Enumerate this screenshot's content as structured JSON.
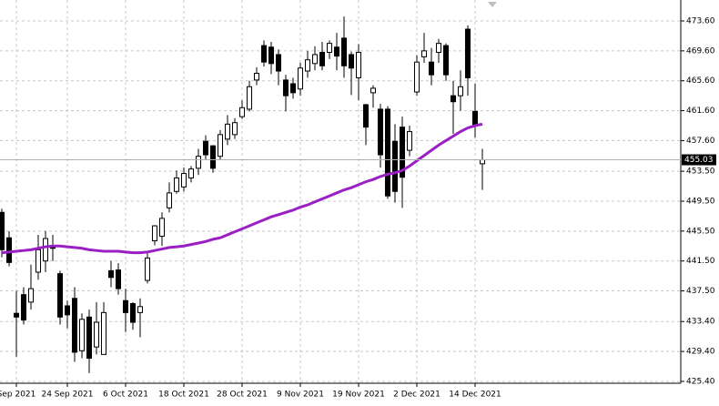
{
  "chart_data": {
    "type": "candlestick",
    "categories": [
      null,
      null,
      "Sep 2021",
      null,
      null,
      null,
      null,
      null,
      null,
      "24 Sep 2021",
      null,
      null,
      null,
      null,
      null,
      null,
      null,
      "6 Oct 2021",
      null,
      null,
      null,
      null,
      null,
      null,
      null,
      "18 Oct 2021",
      null,
      null,
      null,
      null,
      null,
      null,
      null,
      "28 Oct 2021",
      null,
      null,
      null,
      null,
      null,
      null,
      null,
      "9 Nov 2021",
      null,
      null,
      null,
      null,
      null,
      null,
      null,
      "19 Nov 2021",
      null,
      null,
      null,
      null,
      null,
      null,
      null,
      "2 Dec 2021",
      null,
      null,
      null,
      null,
      null,
      null,
      null,
      "14 Dec 2021",
      null
    ],
    "open": [
      448,
      444.6,
      434.5,
      437,
      436,
      440,
      441.5,
      443.5,
      439.8,
      435.5,
      436.5,
      429.5,
      434,
      430,
      429,
      440.2,
      440.3,
      436.2,
      435.8,
      434.6,
      438.9,
      444.2,
      444.8,
      448.6,
      450.8,
      451.4,
      452.6,
      453.9,
      457.5,
      456.9,
      455.5,
      457.8,
      458.4,
      460.8,
      461.8,
      465.7,
      470.3,
      470.1,
      469.1,
      465.7,
      465.2,
      464.5,
      466.9,
      467.9,
      469.4,
      469.4,
      470.1,
      471.3,
      469.1,
      466,
      462.4,
      464,
      461.8,
      461.8,
      457.5,
      459.4,
      456.3,
      464.1,
      468.8,
      468.1,
      469.4,
      470.3,
      463.6,
      463.6,
      472.5,
      461.5,
      454.5
    ],
    "high": [
      448.5,
      445.5,
      437.5,
      438,
      441,
      445,
      445.5,
      445,
      440.2,
      436.2,
      438,
      434.5,
      435,
      436,
      436,
      441.5,
      441.2,
      437.8,
      436,
      436.5,
      442.5,
      446.3,
      448,
      452,
      453.6,
      454,
      454.2,
      456.5,
      458.3,
      457,
      459,
      461,
      460.6,
      463,
      465.6,
      467.4,
      471,
      470.8,
      469.8,
      466.4,
      466,
      468,
      469.6,
      470.2,
      470.8,
      471,
      472,
      474.2,
      469.5,
      470.5,
      462.5,
      465,
      462.5,
      462.2,
      459.8,
      460.8,
      459.6,
      469,
      472,
      470,
      471.2,
      470.6,
      465.6,
      467,
      473,
      465.2,
      456.5
    ],
    "low": [
      442,
      440.8,
      428.7,
      433,
      435,
      439,
      440,
      441.5,
      433,
      432.5,
      428,
      428.5,
      426.5,
      429,
      429,
      438,
      437,
      432,
      432.3,
      431.3,
      438.5,
      443.6,
      443.5,
      448,
      450.5,
      450.8,
      452,
      453,
      455,
      453.3,
      455,
      457,
      457.8,
      460.5,
      461.5,
      465,
      467.5,
      466.5,
      465,
      461.5,
      463.2,
      463.6,
      466,
      467,
      467,
      468.5,
      467,
      466,
      463.7,
      463,
      457,
      462,
      454,
      449.8,
      449.3,
      448.6,
      455.5,
      463.6,
      468,
      465,
      468,
      465.6,
      458.5,
      461.6,
      463.6,
      458,
      451
    ],
    "close": [
      443,
      441.3,
      434,
      433.6,
      437.8,
      443,
      444.5,
      443.2,
      434,
      434.3,
      429.3,
      433.7,
      428.5,
      433.3,
      434.6,
      439.3,
      437.8,
      434.6,
      433.3,
      435.4,
      441.9,
      446.2,
      447.2,
      450.6,
      452.6,
      453.2,
      453.8,
      455.5,
      455.7,
      453.9,
      458.4,
      459.8,
      460,
      462,
      464.8,
      466.6,
      468.1,
      467.9,
      466.9,
      463.6,
      464,
      467.3,
      468.4,
      469.1,
      467.6,
      470.6,
      468.9,
      467.6,
      467.3,
      469.4,
      459.4,
      464.6,
      455.7,
      450.2,
      450.8,
      452.7,
      458.8,
      468.1,
      469.6,
      466.4,
      470.6,
      466.4,
      462.8,
      464.8,
      466,
      459.6,
      455.03
    ],
    "overlay": {
      "color": "#9a1fc4",
      "values": [
        442.6,
        442.7,
        442.8,
        442.9,
        443.0,
        443.2,
        443.4,
        443.5,
        443.5,
        443.4,
        443.3,
        443.2,
        443.0,
        442.9,
        442.8,
        442.8,
        442.8,
        442.7,
        442.6,
        442.6,
        442.7,
        442.9,
        443.1,
        443.3,
        443.4,
        443.5,
        443.7,
        443.9,
        444.1,
        444.4,
        444.6,
        445.0,
        445.4,
        445.8,
        446.2,
        446.6,
        447.0,
        447.4,
        447.7,
        448.0,
        448.3,
        448.7,
        449.0,
        449.4,
        449.8,
        450.2,
        450.6,
        451.0,
        451.3,
        451.7,
        452.1,
        452.4,
        452.8,
        453.1,
        453.3,
        453.6,
        454.2,
        454.9,
        455.6,
        456.3,
        457.0,
        457.6,
        458.2,
        458.8,
        459.3,
        459.6,
        459.8
      ]
    },
    "ylim": [
      425.15,
      476.4
    ],
    "yticks": [
      {
        "value": 425.4,
        "label": "425.40"
      },
      {
        "value": 429.4,
        "label": "429.40"
      },
      {
        "value": 433.4,
        "label": "433.40"
      },
      {
        "value": 437.5,
        "label": "437.50"
      },
      {
        "value": 441.5,
        "label": "441.50"
      },
      {
        "value": 445.5,
        "label": "445.50"
      },
      {
        "value": 449.5,
        "label": "449.50"
      },
      {
        "value": 453.5,
        "label": "453.50"
      },
      {
        "value": 457.6,
        "label": "457.60"
      },
      {
        "value": 461.6,
        "label": "461.60"
      },
      {
        "value": 465.6,
        "label": "465.60"
      },
      {
        "value": 469.6,
        "label": "469.60"
      },
      {
        "value": 473.6,
        "label": "473.60"
      }
    ],
    "grid": true
  }
}
